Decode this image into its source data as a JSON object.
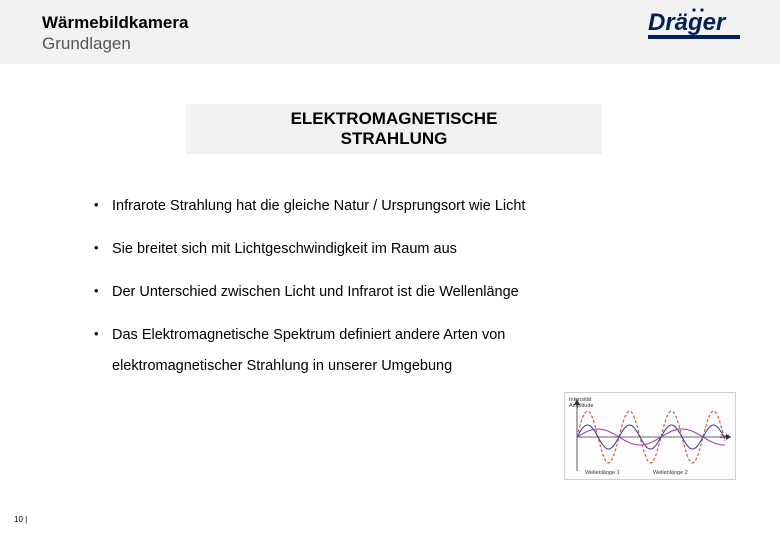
{
  "header": {
    "title_line1": "Wärmebildkamera",
    "title_line2": "Grundlagen"
  },
  "logo": {
    "text": "Dräger",
    "text_color": "#00205b",
    "bar_color": "#00205b",
    "bg_color": "#ffffff"
  },
  "section": {
    "line1": "ELEKTROMAGNETISCHE",
    "line2": "STRAHLUNG",
    "bar_bg": "#f2f2f2"
  },
  "bullets": [
    "Infrarote Strahlung hat die gleiche Natur / Ursprungsort wie Licht",
    "Sie breitet sich mit Lichtgeschwindigkeit im Raum aus",
    "Der Unterschied zwischen Licht und Infrarot ist die Wellenlänge",
    "Das Elektromagnetische Spektrum definiert andere Arten von"
  ],
  "bullet_continuation": "elektromagnetischer Strahlung in unserer Umgebung",
  "wave_chart": {
    "type": "line",
    "width": 172,
    "height": 88,
    "background_color": "#fdfdfd",
    "border_color": "#cfcfcf",
    "axis_color": "#333333",
    "y_label_line1": "Intensität",
    "y_label_line2": "Amplitude",
    "x_label": "Zeit",
    "bottom_label1": "Wellenlänge 1",
    "bottom_label2": "Wellenlänge 2",
    "x_range": [
      0,
      160
    ],
    "y_center": 44,
    "series": [
      {
        "color": "#d85a3a",
        "amplitude": 26,
        "wavelength": 42,
        "stroke_width": 1.2,
        "dash": "3 2"
      },
      {
        "color": "#2a3aa8",
        "amplitude": 12,
        "wavelength": 42,
        "stroke_width": 1.0,
        "dash": ""
      },
      {
        "color": "#9a3aa8",
        "amplitude": 8,
        "wavelength": 84,
        "stroke_width": 1.0,
        "dash": ""
      }
    ]
  },
  "page_number": "10 |",
  "colors": {
    "header_band": "#f2f2f2",
    "text": "#000000",
    "subtitle": "#555555"
  }
}
